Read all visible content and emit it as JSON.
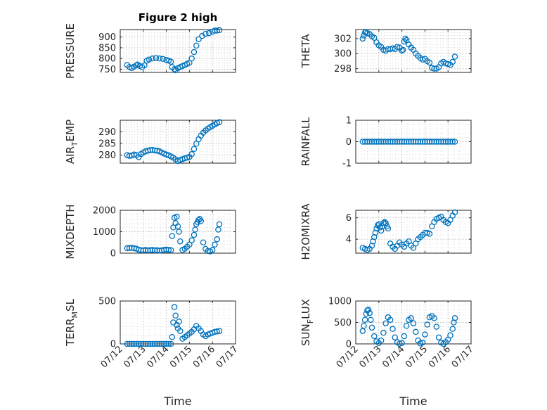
{
  "figure": {
    "title": "Figure 2 high",
    "marker_color": "#0072BD",
    "axis_color": "#262626",
    "grid_color": "#c8c8c8"
  },
  "chart_data": [
    {
      "type": "scatter",
      "name": "pressure-panel",
      "ylabel": "PRESSURE",
      "xlim": [
        "07/12",
        "07/17"
      ],
      "ylim": [
        735,
        935
      ],
      "yticks": [
        750,
        800,
        850,
        900
      ],
      "xticks": [
        "07/12",
        "07/13",
        "07/14",
        "07/15",
        "07/16",
        "07/17"
      ],
      "show_xticklabels": false,
      "xlabel": "",
      "x": [
        12.3,
        12.4,
        12.5,
        12.6,
        12.7,
        12.75,
        12.85,
        12.95,
        13.05,
        13.15,
        13.25,
        13.4,
        13.55,
        13.7,
        13.85,
        14.0,
        14.1,
        14.2,
        14.25,
        14.35,
        14.4,
        14.5,
        14.6,
        14.7,
        14.8,
        14.9,
        15.0,
        15.1,
        15.2,
        15.3,
        15.4,
        15.55,
        15.7,
        15.85,
        16.0,
        16.1,
        16.2,
        16.3
      ],
      "y": [
        770,
        760,
        755,
        762,
        768,
        772,
        765,
        760,
        768,
        790,
        795,
        800,
        802,
        800,
        798,
        793,
        790,
        785,
        760,
        750,
        745,
        755,
        760,
        765,
        770,
        775,
        780,
        800,
        830,
        860,
        890,
        905,
        915,
        918,
        925,
        930,
        930,
        932
      ]
    },
    {
      "type": "scatter",
      "name": "theta-panel",
      "ylabel": "THETA",
      "xlim": [
        "07/12",
        "07/17"
      ],
      "ylim": [
        297.5,
        303.2
      ],
      "yticks": [
        298,
        300,
        302
      ],
      "xticks": [
        "07/12",
        "07/13",
        "07/14",
        "07/15",
        "07/16",
        "07/17"
      ],
      "show_xticklabels": false,
      "xlabel": "",
      "x": [
        12.3,
        12.35,
        12.4,
        12.45,
        12.5,
        12.6,
        12.7,
        12.8,
        12.9,
        13.0,
        13.1,
        13.2,
        13.3,
        13.4,
        13.5,
        13.6,
        13.7,
        13.8,
        13.9,
        14.0,
        14.05,
        14.1,
        14.15,
        14.2,
        14.3,
        14.4,
        14.5,
        14.6,
        14.7,
        14.8,
        14.9,
        15.0,
        15.1,
        15.2,
        15.3,
        15.4,
        15.5,
        15.6,
        15.7,
        15.8,
        15.9,
        16.0,
        16.1,
        16.2,
        16.3
      ],
      "y": [
        302.0,
        302.4,
        302.8,
        302.9,
        302.7,
        302.6,
        302.3,
        302.1,
        301.5,
        301.1,
        300.9,
        300.5,
        300.4,
        300.6,
        300.6,
        300.7,
        300.6,
        300.9,
        300.8,
        300.4,
        300.5,
        301.6,
        302.0,
        301.8,
        301.2,
        300.8,
        300.5,
        300.0,
        299.7,
        299.4,
        299.2,
        299.3,
        299.0,
        298.8,
        298.1,
        298.0,
        298.0,
        298.2,
        298.7,
        298.9,
        298.7,
        298.6,
        298.5,
        298.9,
        299.6
      ]
    },
    {
      "type": "scatter",
      "name": "air-temp-panel",
      "ylabel": "AIR_TEMP",
      "xlim": [
        "07/12",
        "07/17"
      ],
      "ylim": [
        276.5,
        295
      ],
      "yticks": [
        280,
        285,
        290
      ],
      "xticks": [
        "07/12",
        "07/13",
        "07/14",
        "07/15",
        "07/16",
        "07/17"
      ],
      "show_xticklabels": false,
      "xlabel": "",
      "x": [
        12.3,
        12.4,
        12.5,
        12.6,
        12.7,
        12.8,
        12.9,
        13.0,
        13.1,
        13.2,
        13.3,
        13.4,
        13.5,
        13.6,
        13.7,
        13.8,
        13.9,
        14.0,
        14.1,
        14.2,
        14.3,
        14.4,
        14.5,
        14.6,
        14.7,
        14.8,
        14.9,
        15.0,
        15.1,
        15.2,
        15.3,
        15.4,
        15.5,
        15.6,
        15.7,
        15.8,
        15.9,
        16.0,
        16.1,
        16.2,
        16.3
      ],
      "y": [
        280.0,
        279.6,
        279.8,
        280.2,
        280.0,
        279.1,
        280.4,
        281.1,
        281.6,
        281.9,
        282.1,
        282.2,
        282.0,
        281.9,
        281.6,
        281.1,
        280.6,
        280.2,
        279.9,
        279.4,
        278.9,
        278.1,
        277.4,
        277.9,
        278.2,
        278.6,
        278.9,
        279.2,
        280.4,
        282.6,
        284.9,
        286.8,
        288.4,
        289.6,
        290.6,
        291.4,
        292.0,
        292.6,
        293.2,
        293.8,
        294.2
      ]
    },
    {
      "type": "scatter",
      "name": "rainfall-panel",
      "ylabel": "RAINFALL",
      "xlim": [
        "07/12",
        "07/17"
      ],
      "ylim": [
        -1,
        1
      ],
      "yticks": [
        -1,
        0,
        1
      ],
      "xticks": [
        "07/12",
        "07/13",
        "07/14",
        "07/15",
        "07/16",
        "07/17"
      ],
      "show_xticklabels": false,
      "xlabel": "",
      "x": [
        12.3,
        12.4,
        12.5,
        12.6,
        12.7,
        12.8,
        12.9,
        13.0,
        13.1,
        13.2,
        13.3,
        13.4,
        13.5,
        13.6,
        13.7,
        13.8,
        13.9,
        14.0,
        14.1,
        14.2,
        14.3,
        14.4,
        14.5,
        14.6,
        14.7,
        14.8,
        14.9,
        15.0,
        15.1,
        15.2,
        15.3,
        15.4,
        15.5,
        15.6,
        15.7,
        15.8,
        15.9,
        16.0,
        16.1,
        16.2,
        16.3
      ],
      "y": [
        0,
        0,
        0,
        0,
        0,
        0,
        0,
        0,
        0,
        0,
        0,
        0,
        0,
        0,
        0,
        0,
        0,
        0,
        0,
        0,
        0,
        0,
        0,
        0,
        0,
        0,
        0,
        0,
        0,
        0,
        0,
        0,
        0,
        0,
        0,
        0,
        0,
        0,
        0,
        0,
        0
      ]
    },
    {
      "type": "scatter",
      "name": "mixdepth-panel",
      "ylabel": "MIXDEPTH",
      "xlim": [
        "07/12",
        "07/17"
      ],
      "ylim": [
        0,
        2000
      ],
      "yticks": [
        0,
        1000,
        2000
      ],
      "xticks": [
        "07/12",
        "07/13",
        "07/14",
        "07/15",
        "07/16",
        "07/17"
      ],
      "show_xticklabels": false,
      "xlabel": "",
      "x": [
        12.3,
        12.4,
        12.5,
        12.6,
        12.7,
        12.8,
        12.9,
        13.0,
        13.1,
        13.2,
        13.3,
        13.4,
        13.5,
        13.6,
        13.7,
        13.8,
        13.9,
        14.0,
        14.1,
        14.2,
        14.25,
        14.3,
        14.35,
        14.4,
        14.45,
        14.5,
        14.55,
        14.6,
        14.7,
        14.8,
        14.9,
        15.0,
        15.1,
        15.2,
        15.25,
        15.3,
        15.35,
        15.4,
        15.45,
        15.5,
        15.6,
        15.7,
        15.8,
        15.9,
        16.0,
        16.1,
        16.2,
        16.25,
        16.3
      ],
      "y": [
        230,
        240,
        250,
        230,
        210,
        160,
        140,
        130,
        150,
        130,
        140,
        150,
        130,
        140,
        120,
        130,
        150,
        170,
        150,
        140,
        800,
        1200,
        1650,
        1400,
        1700,
        1250,
        1000,
        550,
        150,
        200,
        300,
        400,
        600,
        850,
        1100,
        1350,
        1450,
        1550,
        1600,
        1500,
        500,
        200,
        100,
        80,
        150,
        400,
        650,
        1100,
        1350
      ]
    },
    {
      "type": "scatter",
      "name": "h2omixra-panel",
      "ylabel": "H2OMIXRA",
      "xlim": [
        "07/12",
        "07/17"
      ],
      "ylim": [
        2.7,
        6.7
      ],
      "yticks": [
        4,
        6
      ],
      "xticks": [
        "07/12",
        "07/13",
        "07/14",
        "07/15",
        "07/16",
        "07/17"
      ],
      "show_xticklabels": false,
      "xlabel": "",
      "x": [
        12.3,
        12.4,
        12.5,
        12.6,
        12.7,
        12.75,
        12.8,
        12.85,
        12.9,
        12.95,
        13.0,
        13.05,
        13.1,
        13.15,
        13.2,
        13.25,
        13.3,
        13.35,
        13.4,
        13.5,
        13.6,
        13.7,
        13.8,
        13.9,
        14.0,
        14.1,
        14.2,
        14.3,
        14.4,
        14.5,
        14.6,
        14.7,
        14.8,
        14.9,
        15.0,
        15.1,
        15.2,
        15.3,
        15.4,
        15.5,
        15.6,
        15.7,
        15.8,
        15.9,
        16.0,
        16.1,
        16.2,
        16.3
      ],
      "y": [
        3.2,
        3.1,
        3.0,
        3.1,
        3.4,
        3.8,
        4.2,
        4.6,
        5.0,
        5.3,
        5.4,
        5.1,
        4.8,
        5.2,
        5.5,
        5.6,
        5.5,
        5.2,
        5.0,
        3.6,
        3.3,
        3.1,
        3.4,
        3.7,
        3.5,
        3.3,
        3.6,
        3.8,
        3.4,
        3.2,
        3.6,
        4.0,
        4.2,
        4.4,
        4.6,
        4.6,
        4.5,
        5.2,
        5.6,
        5.9,
        6.0,
        6.1,
        5.8,
        5.6,
        5.5,
        5.8,
        6.2,
        6.5
      ]
    },
    {
      "type": "scatter",
      "name": "terr-msl-panel",
      "ylabel": "TERR_MSL",
      "xlim": [
        "07/12",
        "07/17"
      ],
      "ylim": [
        0,
        500
      ],
      "yticks": [
        0,
        500
      ],
      "xticks": [
        "07/12",
        "07/13",
        "07/14",
        "07/15",
        "07/16",
        "07/17"
      ],
      "show_xticklabels": true,
      "xlabel": "Time",
      "x": [
        12.3,
        12.4,
        12.5,
        12.6,
        12.7,
        12.8,
        12.9,
        13.0,
        13.1,
        13.2,
        13.3,
        13.4,
        13.5,
        13.6,
        13.7,
        13.8,
        13.9,
        14.0,
        14.1,
        14.2,
        14.25,
        14.3,
        14.35,
        14.4,
        14.45,
        14.5,
        14.55,
        14.6,
        14.7,
        14.8,
        14.9,
        15.0,
        15.1,
        15.2,
        15.3,
        15.4,
        15.5,
        15.6,
        15.7,
        15.8,
        15.9,
        16.0,
        16.1,
        16.2,
        16.3
      ],
      "y": [
        0,
        0,
        0,
        0,
        0,
        0,
        0,
        0,
        0,
        0,
        0,
        0,
        0,
        0,
        0,
        0,
        0,
        0,
        0,
        0,
        80,
        250,
        430,
        330,
        220,
        180,
        260,
        150,
        60,
        80,
        100,
        120,
        140,
        170,
        210,
        180,
        150,
        110,
        90,
        110,
        120,
        130,
        140,
        145,
        150
      ]
    },
    {
      "type": "scatter",
      "name": "sun-flux-panel",
      "ylabel": "SUN_FLUX",
      "xlim": [
        "07/12",
        "07/17"
      ],
      "ylim": [
        0,
        1000
      ],
      "yticks": [
        0,
        500,
        1000
      ],
      "xticks": [
        "07/12",
        "07/13",
        "07/14",
        "07/15",
        "07/16",
        "07/17"
      ],
      "show_xticklabels": true,
      "xlabel": "Time",
      "x": [
        12.3,
        12.35,
        12.4,
        12.45,
        12.5,
        12.55,
        12.6,
        12.65,
        12.7,
        12.8,
        12.9,
        13.0,
        13.1,
        13.2,
        13.3,
        13.4,
        13.5,
        13.6,
        13.7,
        13.8,
        13.9,
        14.0,
        14.1,
        14.2,
        14.3,
        14.4,
        14.5,
        14.6,
        14.7,
        14.8,
        14.9,
        15.0,
        15.1,
        15.2,
        15.3,
        15.4,
        15.5,
        15.6,
        15.7,
        15.8,
        15.9,
        16.0,
        16.1,
        16.2,
        16.25,
        16.3
      ],
      "y": [
        300,
        420,
        560,
        700,
        780,
        800,
        720,
        560,
        380,
        180,
        60,
        20,
        80,
        260,
        480,
        620,
        560,
        350,
        150,
        40,
        5,
        20,
        180,
        420,
        560,
        600,
        480,
        280,
        80,
        10,
        30,
        220,
        450,
        620,
        650,
        600,
        400,
        150,
        30,
        0,
        40,
        100,
        200,
        350,
        500,
        600
      ]
    }
  ]
}
